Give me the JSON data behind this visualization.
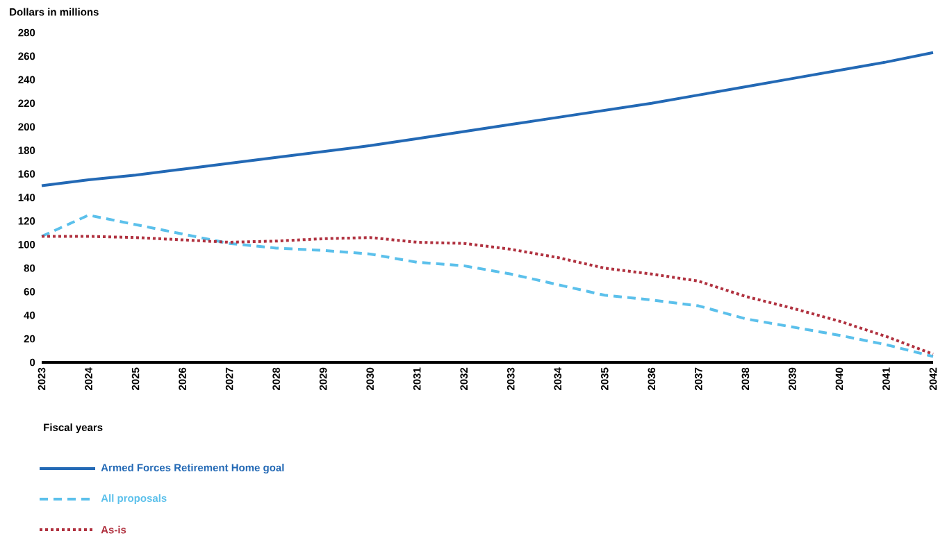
{
  "chart_data": {
    "type": "line",
    "xlabel": "Fiscal years",
    "ylabel": "Dollars in millions",
    "x": [
      2023,
      2024,
      2025,
      2026,
      2027,
      2028,
      2029,
      2030,
      2031,
      2032,
      2033,
      2034,
      2035,
      2036,
      2037,
      2038,
      2039,
      2040,
      2041,
      2042
    ],
    "xlim": [
      2023,
      2042
    ],
    "xticks": [
      2023,
      2024,
      2025,
      2026,
      2027,
      2028,
      2029,
      2030,
      2031,
      2032,
      2033,
      2034,
      2035,
      2036,
      2037,
      2038,
      2039,
      2040,
      2041,
      2042
    ],
    "ylim": [
      0,
      280
    ],
    "yticks": [
      0,
      20,
      40,
      60,
      80,
      100,
      120,
      140,
      160,
      180,
      200,
      220,
      240,
      260,
      280
    ],
    "legend": "bottom",
    "grid": false,
    "series": [
      {
        "name": "Armed Forces Retirement Home goal",
        "color": "#2369b5",
        "line_style": "solid",
        "values": [
          150,
          155,
          159,
          164,
          169,
          174,
          179,
          184,
          190,
          196,
          202,
          208,
          214,
          220,
          227,
          234,
          241,
          248,
          255,
          263
        ]
      },
      {
        "name": "All proposals",
        "color": "#5bc0eb",
        "line_style": "dashed",
        "values": [
          107,
          125,
          117,
          109,
          101,
          97,
          95,
          92,
          85,
          82,
          75,
          66,
          57,
          53,
          48,
          37,
          30,
          23,
          15,
          5
        ]
      },
      {
        "name": "As-is",
        "color": "#b0313f",
        "line_style": "dotted",
        "values": [
          107,
          107,
          106,
          104,
          102,
          103,
          105,
          106,
          102,
          101,
          96,
          89,
          80,
          75,
          69,
          56,
          46,
          35,
          22,
          7
        ]
      }
    ]
  }
}
